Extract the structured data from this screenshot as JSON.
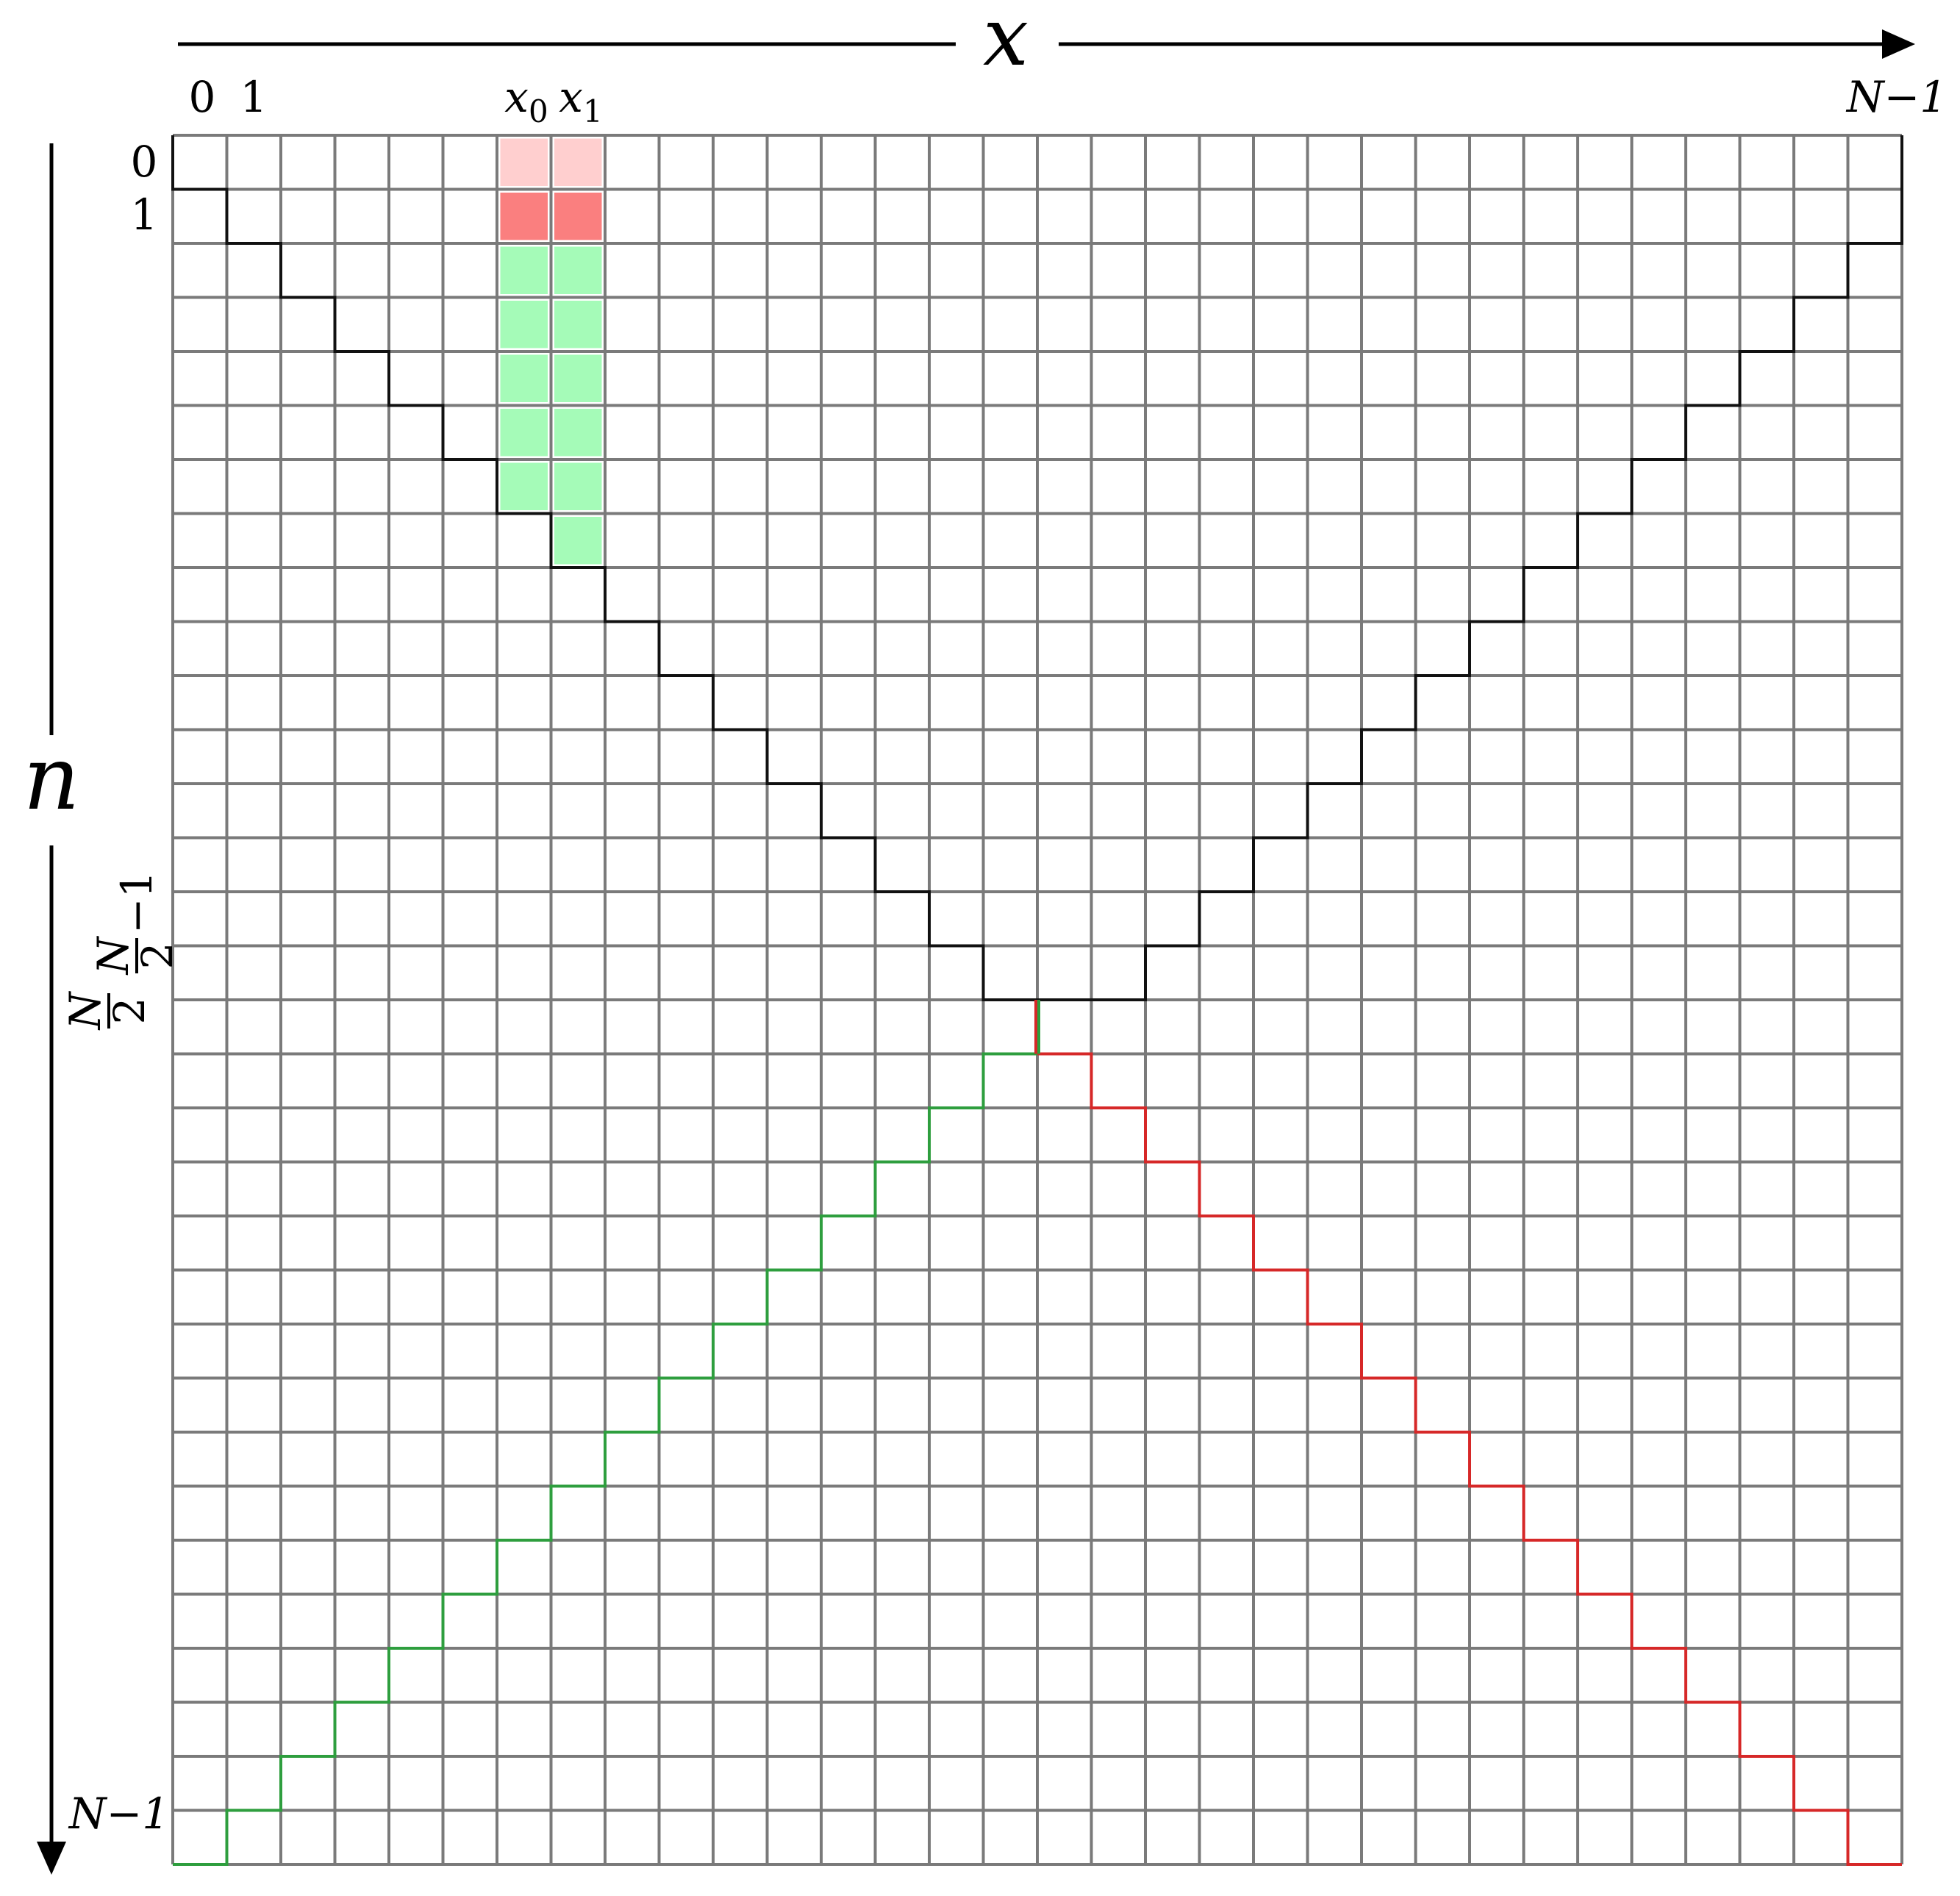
{
  "axes": {
    "x_label": "x",
    "n_label": "n"
  },
  "labels": {
    "x_tick_0": "0",
    "x_tick_1": "1",
    "x_tick_last": "N−1",
    "x0_main": "x",
    "x0_sub": "0",
    "x1_main": "x",
    "x1_sub": "1",
    "n_tick_0": "0",
    "n_tick_1": "1",
    "n_tick_last": "N−1",
    "n_half_num": "N",
    "n_half_den": "2",
    "n_half_m1_num": "N",
    "n_half_m1_den": "2",
    "n_half_m1_suffix": "−1"
  },
  "grid": {
    "columns": 32,
    "rows": 32
  },
  "highlight": {
    "columns": [
      6,
      7
    ],
    "light_red_rows": [
      0
    ],
    "red_rows": [
      1
    ],
    "green_rows_col6": [
      2,
      3,
      4,
      5,
      6
    ],
    "green_rows_col7": [
      2,
      3,
      4,
      5,
      6,
      7
    ]
  },
  "colors": {
    "grid": "#7a7a7a",
    "black_path": "#111111",
    "green_path": "#2e9e3e",
    "red_path": "#d62828",
    "cell_light_red": "#ffcfcf",
    "cell_red": "#fa7f7f",
    "cell_green": "#a5fbb8"
  }
}
